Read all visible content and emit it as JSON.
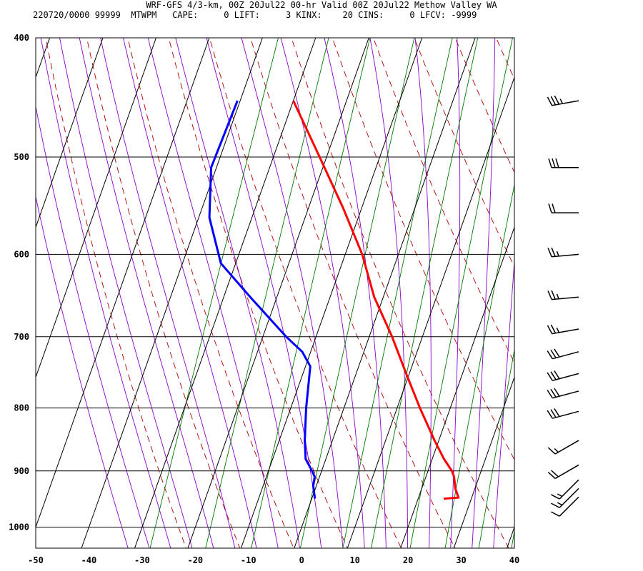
{
  "header": {
    "title": "WRF-GFS 4/3-km, 00Z 20Jul22 00-hr Valid 00Z 20Jul22 Methow Valley WA",
    "info": "220720/0000 99999  MTWPM   CAPE:     0 LIFT:     3 KINX:    20 CINS:     0 LFCV: -9999"
  },
  "chart_data": {
    "type": "line",
    "title": "WRF-GFS 4/3-km, 00Z 20Jul22 00-hr Valid 00Z 20Jul22 Methow Valley WA",
    "xlabel": "",
    "ylabel": "",
    "x_ticks": [
      -50,
      -40,
      -30,
      -20,
      -10,
      0,
      10,
      20,
      30,
      40
    ],
    "p_ticks": [
      400,
      500,
      600,
      700,
      800,
      900,
      1000
    ],
    "xlim": [
      -50,
      40
    ],
    "plim": [
      400,
      1040
    ],
    "skew_per_decade": 82,
    "colors": {
      "temperature": "#ff0000",
      "dewpoint": "#0000ff",
      "dry_adiabat": "#aa0000",
      "moist_adiabat": "#8800cc",
      "mixing_ratio": "#007700",
      "grid": "#000000"
    },
    "series": [
      {
        "name": "",
        "kind": "temperature",
        "points": [
          {
            "p": 948,
            "t": 24.8
          },
          {
            "p": 946,
            "t": 27.5
          },
          {
            "p": 930,
            "t": 26.3
          },
          {
            "p": 910,
            "t": 25.3
          },
          {
            "p": 900,
            "t": 24.5
          },
          {
            "p": 880,
            "t": 22.2
          },
          {
            "p": 850,
            "t": 19.2
          },
          {
            "p": 800,
            "t": 14.3
          },
          {
            "p": 750,
            "t": 9.4
          },
          {
            "p": 700,
            "t": 4.3
          },
          {
            "p": 650,
            "t": -1.7
          },
          {
            "p": 600,
            "t": -6.8
          },
          {
            "p": 550,
            "t": -13.5
          },
          {
            "p": 500,
            "t": -21.3
          },
          {
            "p": 450,
            "t": -30.0
          }
        ]
      },
      {
        "name": "",
        "kind": "dewpoint",
        "points": [
          {
            "p": 948,
            "t": 0.6
          },
          {
            "p": 925,
            "t": -0.6
          },
          {
            "p": 910,
            "t": -0.9
          },
          {
            "p": 900,
            "t": -1.8
          },
          {
            "p": 880,
            "t": -3.8
          },
          {
            "p": 850,
            "t": -5.2
          },
          {
            "p": 800,
            "t": -7.1
          },
          {
            "p": 740,
            "t": -9.1
          },
          {
            "p": 720,
            "t": -11.6
          },
          {
            "p": 700,
            "t": -15.6
          },
          {
            "p": 650,
            "t": -25.0
          },
          {
            "p": 610,
            "t": -32.8
          },
          {
            "p": 560,
            "t": -38.0
          },
          {
            "p": 510,
            "t": -41.0
          },
          {
            "p": 450,
            "t": -40.5
          }
        ]
      }
    ],
    "wind_barbs": [
      {
        "p": 450,
        "dir": 260,
        "speed": 35
      },
      {
        "p": 510,
        "dir": 270,
        "speed": 30
      },
      {
        "p": 555,
        "dir": 270,
        "speed": 20
      },
      {
        "p": 600,
        "dir": 265,
        "speed": 25
      },
      {
        "p": 650,
        "dir": 265,
        "speed": 25
      },
      {
        "p": 690,
        "dir": 260,
        "speed": 25
      },
      {
        "p": 720,
        "dir": 255,
        "speed": 30
      },
      {
        "p": 750,
        "dir": 255,
        "speed": 30
      },
      {
        "p": 775,
        "dir": 255,
        "speed": 30
      },
      {
        "p": 805,
        "dir": 255,
        "speed": 30
      },
      {
        "p": 850,
        "dir": 240,
        "speed": 15
      },
      {
        "p": 890,
        "dir": 240,
        "speed": 20
      },
      {
        "p": 915,
        "dir": 225,
        "speed": 15
      },
      {
        "p": 930,
        "dir": 225,
        "speed": 15
      },
      {
        "p": 945,
        "dir": 225,
        "speed": 10
      }
    ]
  }
}
